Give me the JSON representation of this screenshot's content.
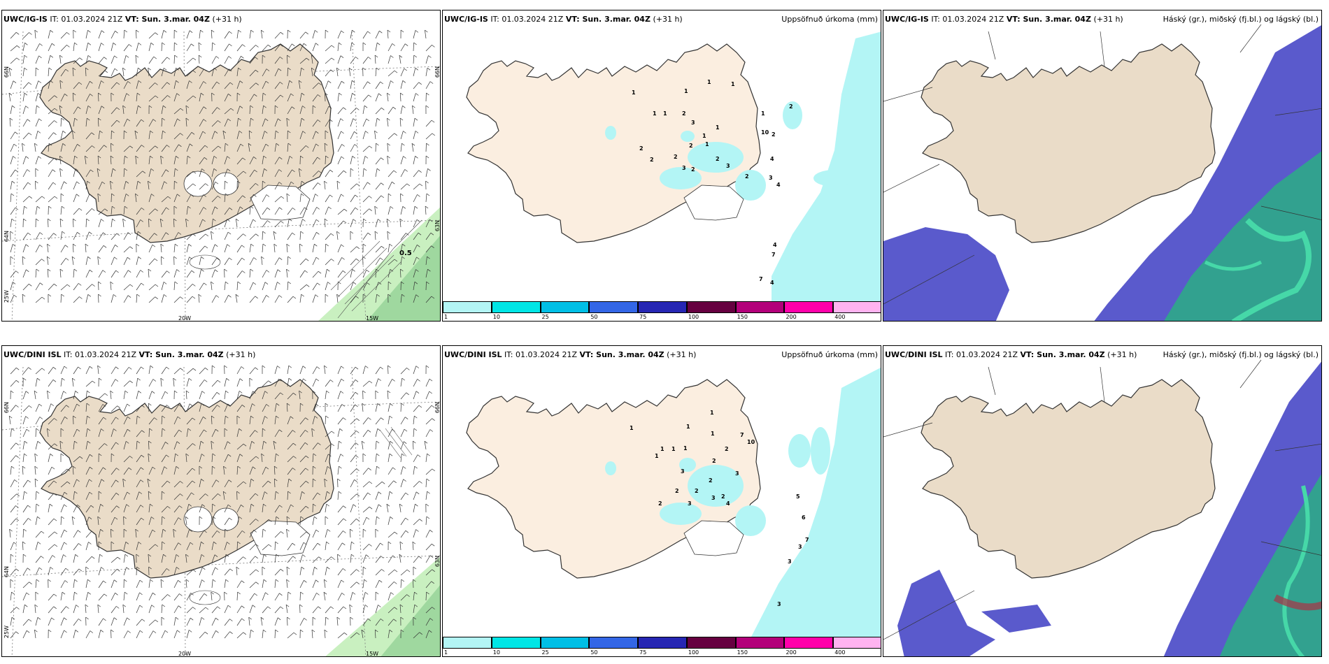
{
  "panels": {
    "wind_top": {
      "model": "UWC/IG-IS",
      "it": "IT: 01.03.2024 21Z",
      "vt": "VT: Sun. 3.mar. 04Z",
      "lead": "(+31 h)",
      "title": "",
      "marker": "0.5"
    },
    "precip_top": {
      "model": "UWC/IG-IS",
      "it": "IT: 01.03.2024 21Z",
      "vt": "VT: Sun. 3.mar. 04Z",
      "lead": "(+31 h)",
      "title": "Uppsöfnuð úrkoma (mm)",
      "values": [
        "1",
        "1",
        "1",
        "1",
        "1",
        "1",
        "2",
        "3",
        "1",
        "1",
        "1",
        "2",
        "2",
        "2",
        "2",
        "2",
        "2",
        "3",
        "1",
        "2",
        "3",
        "2",
        "3",
        "4",
        "4",
        "4",
        "7",
        "7",
        "4",
        "10",
        "2"
      ]
    },
    "cloud_top": {
      "model": "UWC/IG-IS",
      "it": "IT: 01.03.2024 21Z",
      "vt": "VT: Sun. 3.mar. 04Z",
      "lead": "(+31 h)",
      "title": "Háský (gr.), miðský (fj.bl.) og lágský (bl.)"
    },
    "wind_bottom": {
      "model": "UWC/DINI ISL",
      "it": "IT: 01.03.2024 21Z",
      "vt": "VT: Sun. 3.mar. 04Z",
      "lead": "(+31 h)",
      "title": ""
    },
    "precip_bottom": {
      "model": "UWC/DINI ISL",
      "it": "IT: 01.03.2024 21Z",
      "vt": "VT: Sun. 3.mar. 04Z",
      "lead": "(+31 h)",
      "title": "Uppsöfnuð úrkoma (mm)",
      "values": [
        "1",
        "1",
        "1",
        "1",
        "1",
        "2",
        "1",
        "3",
        "2",
        "1",
        "1",
        "2",
        "2",
        "2",
        "3",
        "2",
        "3",
        "4",
        "2",
        "7",
        "10",
        "3",
        "5",
        "6",
        "7",
        "3",
        "3",
        "3"
      ]
    },
    "cloud_bottom": {
      "model": "UWC/DINI ISL",
      "it": "IT: 01.03.2024 21Z",
      "vt": "VT: Sun. 3.mar. 04Z",
      "lead": "(+31 h)",
      "title": "Háský (gr.), miðský (fj.bl.) og lágský (bl.)"
    }
  },
  "axis_labels": {
    "lat66": "66N",
    "lat64": "64N",
    "lat63": "63N",
    "lon20": "20W",
    "lon15": "15W",
    "lon25": "25W"
  },
  "colorbar": {
    "ticks": [
      "1",
      "10",
      "25",
      "50",
      "75",
      "100",
      "150",
      "200",
      "400"
    ],
    "colors": [
      "#b3f5f5",
      "#00e6e6",
      "#00bfe6",
      "#3366e6",
      "#2626b3",
      "#660040",
      "#b3007a",
      "#ff00aa",
      "#ffb3f0"
    ]
  },
  "colors": {
    "land": "#eadcc8",
    "land_light": "#fbeee0",
    "precip_sea": "#b3f5f5",
    "cloud_high": "#5a5acc",
    "cloud_mid": "#2ea888",
    "cloud_low": "#46d8a8",
    "wind_green": "#9fd89f"
  }
}
